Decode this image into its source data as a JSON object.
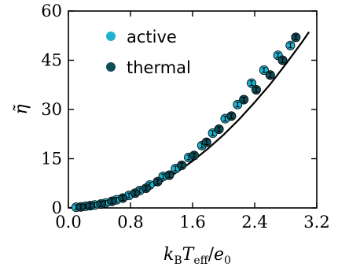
{
  "chart_data": {
    "type": "scatter",
    "xlabel": "k_B T_eff / e_0",
    "ylabel": "η̃",
    "xlim": [
      0.0,
      3.2
    ],
    "ylim": [
      0,
      60
    ],
    "xticks": [
      "0.0",
      "0.8",
      "1.6",
      "2.4",
      "3.2"
    ],
    "yticks": [
      "0",
      "15",
      "30",
      "45",
      "60"
    ],
    "legend_position": "top-left",
    "series": [
      {
        "name": "active",
        "color": "#1fb2d0",
        "x": [
          0.1,
          0.22,
          0.34,
          0.48,
          0.62,
          0.78,
          0.92,
          1.05,
          1.22,
          1.38,
          1.55,
          1.72,
          1.86,
          2.02,
          2.18,
          2.36,
          2.52,
          2.7,
          2.86
        ],
        "y": [
          0.2,
          0.5,
          0.9,
          1.5,
          2.5,
          3.8,
          5.3,
          7.0,
          9.6,
          12.0,
          15.4,
          19.0,
          22.8,
          27.2,
          31.5,
          38.0,
          42.0,
          46.5,
          49.5
        ]
      },
      {
        "name": "thermal",
        "color": "#0e4d5a",
        "x": [
          0.16,
          0.28,
          0.42,
          0.56,
          0.7,
          0.86,
          1.0,
          1.15,
          1.3,
          1.46,
          1.62,
          1.78,
          1.94,
          2.1,
          2.26,
          2.42,
          2.6,
          2.76,
          2.93
        ],
        "y": [
          0.3,
          0.7,
          1.2,
          2.0,
          3.0,
          4.5,
          6.0,
          8.0,
          10.0,
          13.0,
          16.0,
          20.0,
          24.0,
          28.0,
          33.0,
          36.0,
          40.5,
          45.0,
          52.0
        ]
      }
    ],
    "fit": {
      "type": "line",
      "color": "#000000",
      "x": [
        0.0,
        0.2,
        0.4,
        0.6,
        0.8,
        1.0,
        1.2,
        1.4,
        1.6,
        1.8,
        2.0,
        2.2,
        2.4,
        2.6,
        2.8,
        3.0,
        3.1
      ],
      "y": [
        0.0,
        0.25,
        0.9,
        2.0,
        3.6,
        5.6,
        8.0,
        10.9,
        14.3,
        18.1,
        22.3,
        27.0,
        32.2,
        37.7,
        43.8,
        50.2,
        53.6
      ]
    }
  }
}
